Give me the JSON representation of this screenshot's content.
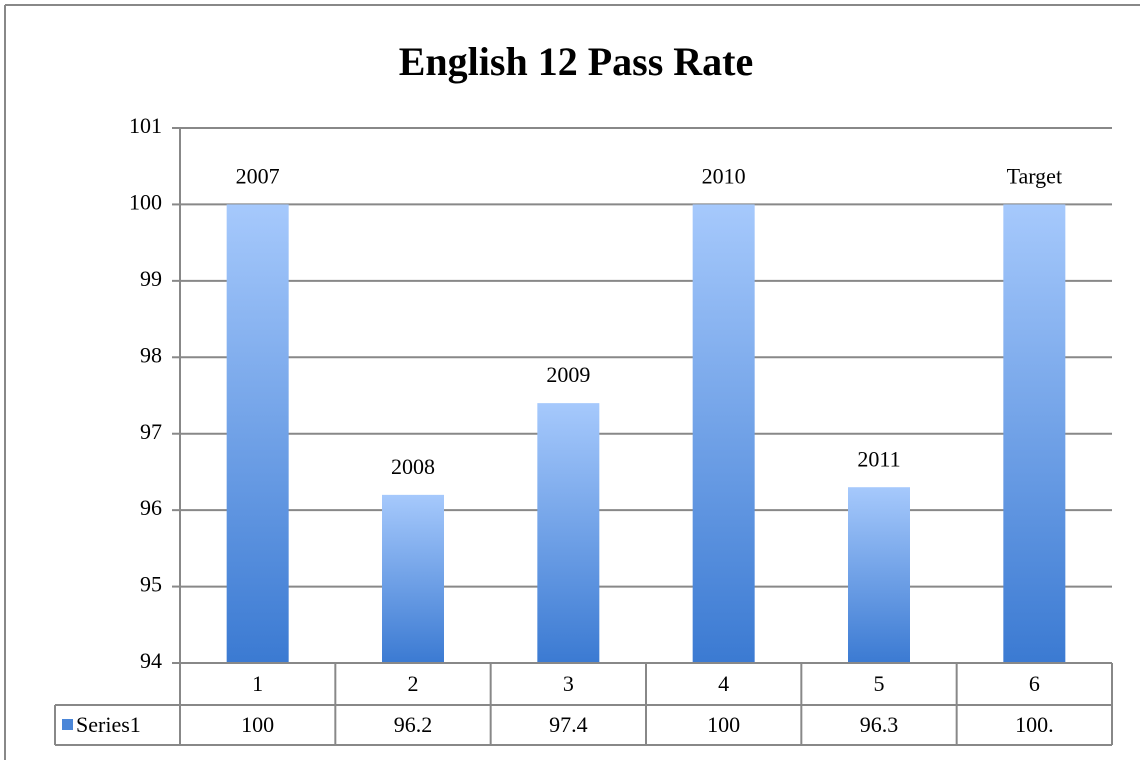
{
  "chart_data": {
    "type": "bar",
    "title": "English 12 Pass Rate",
    "categories": [
      "1",
      "2",
      "3",
      "4",
      "5",
      "6"
    ],
    "series": [
      {
        "name": "Series1",
        "color": "#4a86d8",
        "values": [
          100,
          96.2,
          97.4,
          100,
          96.3,
          100
        ],
        "value_labels": [
          "100",
          "96.2",
          "97.4",
          "100",
          "96.3",
          "100."
        ]
      }
    ],
    "bar_labels": [
      "2007",
      "2008",
      "2009",
      "2010",
      "2011",
      "Target"
    ],
    "ylim": [
      94,
      101
    ],
    "yticks": [
      94,
      95,
      96,
      97,
      98,
      99,
      100,
      101
    ],
    "grid": true
  }
}
